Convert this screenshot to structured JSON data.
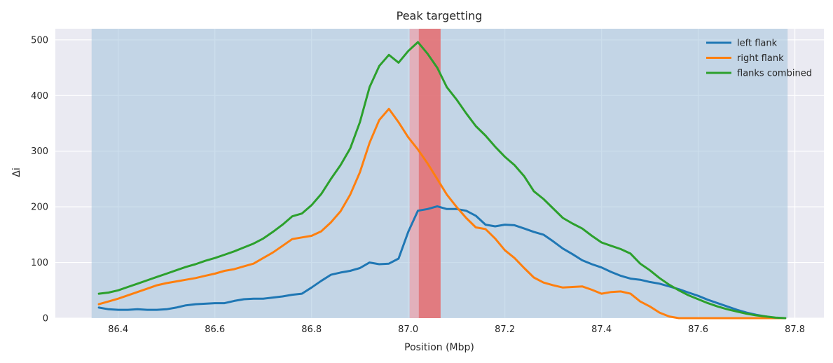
{
  "chart_data": {
    "type": "line",
    "title": "Peak targetting",
    "xlabel": "Position (Mbp)",
    "ylabel": "Δi",
    "xlim": [
      86.27,
      87.86
    ],
    "ylim": [
      0,
      520
    ],
    "xticks": [
      86.4,
      86.6,
      86.8,
      87.0,
      87.2,
      87.4,
      87.6,
      87.8
    ],
    "xtick_labels": [
      "86.4",
      "86.6",
      "86.8",
      "87.0",
      "87.2",
      "87.4",
      "87.6",
      "87.8"
    ],
    "yticks": [
      0,
      100,
      200,
      300,
      400,
      500
    ],
    "ytick_labels": [
      "0",
      "100",
      "200",
      "300",
      "400",
      "500"
    ],
    "grid": true,
    "legend_position": "top-right",
    "background_color": "#eaeaf2",
    "shaded_regions": [
      {
        "x0": 86.345,
        "x1": 87.785,
        "color": "#a3c2dd",
        "opacity": 0.55
      },
      {
        "x0": 87.003,
        "x1": 87.067,
        "color": "#f0a0a8",
        "opacity": 0.7
      },
      {
        "x0": 87.022,
        "x1": 87.067,
        "color": "#e05050",
        "opacity": 0.55
      }
    ],
    "series": [
      {
        "name": "left flank",
        "color": "#1f77b4",
        "x": [
          86.36,
          86.38,
          86.4,
          86.42,
          86.44,
          86.46,
          86.48,
          86.5,
          86.52,
          86.54,
          86.56,
          86.58,
          86.6,
          86.62,
          86.64,
          86.66,
          86.68,
          86.7,
          86.72,
          86.74,
          86.76,
          86.78,
          86.8,
          86.82,
          86.84,
          86.86,
          86.88,
          86.9,
          86.92,
          86.94,
          86.96,
          86.98,
          87.0,
          87.02,
          87.04,
          87.06,
          87.08,
          87.1,
          87.12,
          87.14,
          87.16,
          87.18,
          87.2,
          87.22,
          87.24,
          87.26,
          87.28,
          87.3,
          87.32,
          87.34,
          87.36,
          87.38,
          87.4,
          87.42,
          87.44,
          87.46,
          87.48,
          87.5,
          87.52,
          87.54,
          87.56,
          87.58,
          87.6,
          87.62,
          87.64,
          87.66,
          87.68,
          87.7,
          87.72,
          87.74,
          87.76,
          87.78
        ],
        "y": [
          19,
          16,
          15,
          15,
          16,
          15,
          15,
          16,
          19,
          23,
          25,
          26,
          27,
          27,
          31,
          34,
          35,
          35,
          37,
          39,
          42,
          44,
          55,
          67,
          78,
          82,
          85,
          90,
          100,
          97,
          98,
          107,
          155,
          193,
          196,
          201,
          196,
          196,
          193,
          184,
          168,
          165,
          168,
          167,
          161,
          155,
          150,
          138,
          125,
          115,
          104,
          97,
          91,
          83,
          76,
          71,
          69,
          65,
          62,
          57,
          52,
          46,
          40,
          33,
          27,
          21,
          15,
          10,
          6,
          3,
          0,
          0
        ]
      },
      {
        "name": "right flank",
        "color": "#ff7f0e",
        "x": [
          86.36,
          86.38,
          86.4,
          86.42,
          86.44,
          86.46,
          86.48,
          86.5,
          86.52,
          86.54,
          86.56,
          86.58,
          86.6,
          86.62,
          86.64,
          86.66,
          86.68,
          86.7,
          86.72,
          86.74,
          86.76,
          86.78,
          86.8,
          86.82,
          86.84,
          86.86,
          86.88,
          86.9,
          86.92,
          86.94,
          86.96,
          86.98,
          87.0,
          87.02,
          87.04,
          87.06,
          87.08,
          87.1,
          87.12,
          87.14,
          87.16,
          87.18,
          87.2,
          87.22,
          87.24,
          87.26,
          87.28,
          87.3,
          87.32,
          87.34,
          87.36,
          87.38,
          87.4,
          87.42,
          87.44,
          87.46,
          87.48,
          87.5,
          87.52,
          87.54,
          87.56,
          87.58,
          87.6,
          87.62,
          87.64,
          87.66,
          87.68,
          87.7,
          87.72,
          87.74,
          87.76,
          87.78
        ],
        "y": [
          25,
          30,
          35,
          41,
          47,
          53,
          59,
          63,
          66,
          69,
          72,
          76,
          80,
          85,
          88,
          93,
          98,
          108,
          118,
          130,
          142,
          145,
          148,
          156,
          172,
          192,
          222,
          262,
          315,
          356,
          376,
          352,
          325,
          303,
          278,
          250,
          222,
          200,
          180,
          163,
          160,
          143,
          122,
          108,
          90,
          73,
          64,
          59,
          55,
          56,
          57,
          51,
          44,
          47,
          48,
          44,
          30,
          21,
          10,
          3,
          0,
          0,
          0,
          0,
          0,
          0,
          0,
          0,
          0,
          0,
          0,
          0
        ]
      },
      {
        "name": "flanks combined",
        "color": "#2ca02c",
        "x": [
          86.36,
          86.38,
          86.4,
          86.42,
          86.44,
          86.46,
          86.48,
          86.5,
          86.52,
          86.54,
          86.56,
          86.58,
          86.6,
          86.62,
          86.64,
          86.66,
          86.68,
          86.7,
          86.72,
          86.74,
          86.76,
          86.78,
          86.8,
          86.82,
          86.84,
          86.86,
          86.88,
          86.9,
          86.92,
          86.94,
          86.96,
          86.98,
          87.0,
          87.02,
          87.04,
          87.06,
          87.08,
          87.1,
          87.12,
          87.14,
          87.16,
          87.18,
          87.2,
          87.22,
          87.24,
          87.26,
          87.28,
          87.3,
          87.32,
          87.34,
          87.36,
          87.38,
          87.4,
          87.42,
          87.44,
          87.46,
          87.48,
          87.5,
          87.52,
          87.54,
          87.56,
          87.58,
          87.6,
          87.62,
          87.64,
          87.66,
          87.68,
          87.7,
          87.72,
          87.74,
          87.76,
          87.78
        ],
        "y": [
          44,
          46,
          50,
          56,
          62,
          68,
          74,
          80,
          86,
          92,
          97,
          103,
          108,
          114,
          120,
          127,
          134,
          143,
          155,
          168,
          183,
          188,
          203,
          223,
          250,
          275,
          305,
          352,
          415,
          453,
          473,
          459,
          480,
          496,
          475,
          450,
          415,
          393,
          368,
          345,
          328,
          308,
          290,
          275,
          255,
          228,
          214,
          197,
          180,
          170,
          161,
          148,
          136,
          130,
          124,
          116,
          98,
          86,
          72,
          60,
          50,
          41,
          34,
          27,
          21,
          16,
          12,
          8,
          5,
          3,
          1,
          0
        ]
      }
    ]
  }
}
